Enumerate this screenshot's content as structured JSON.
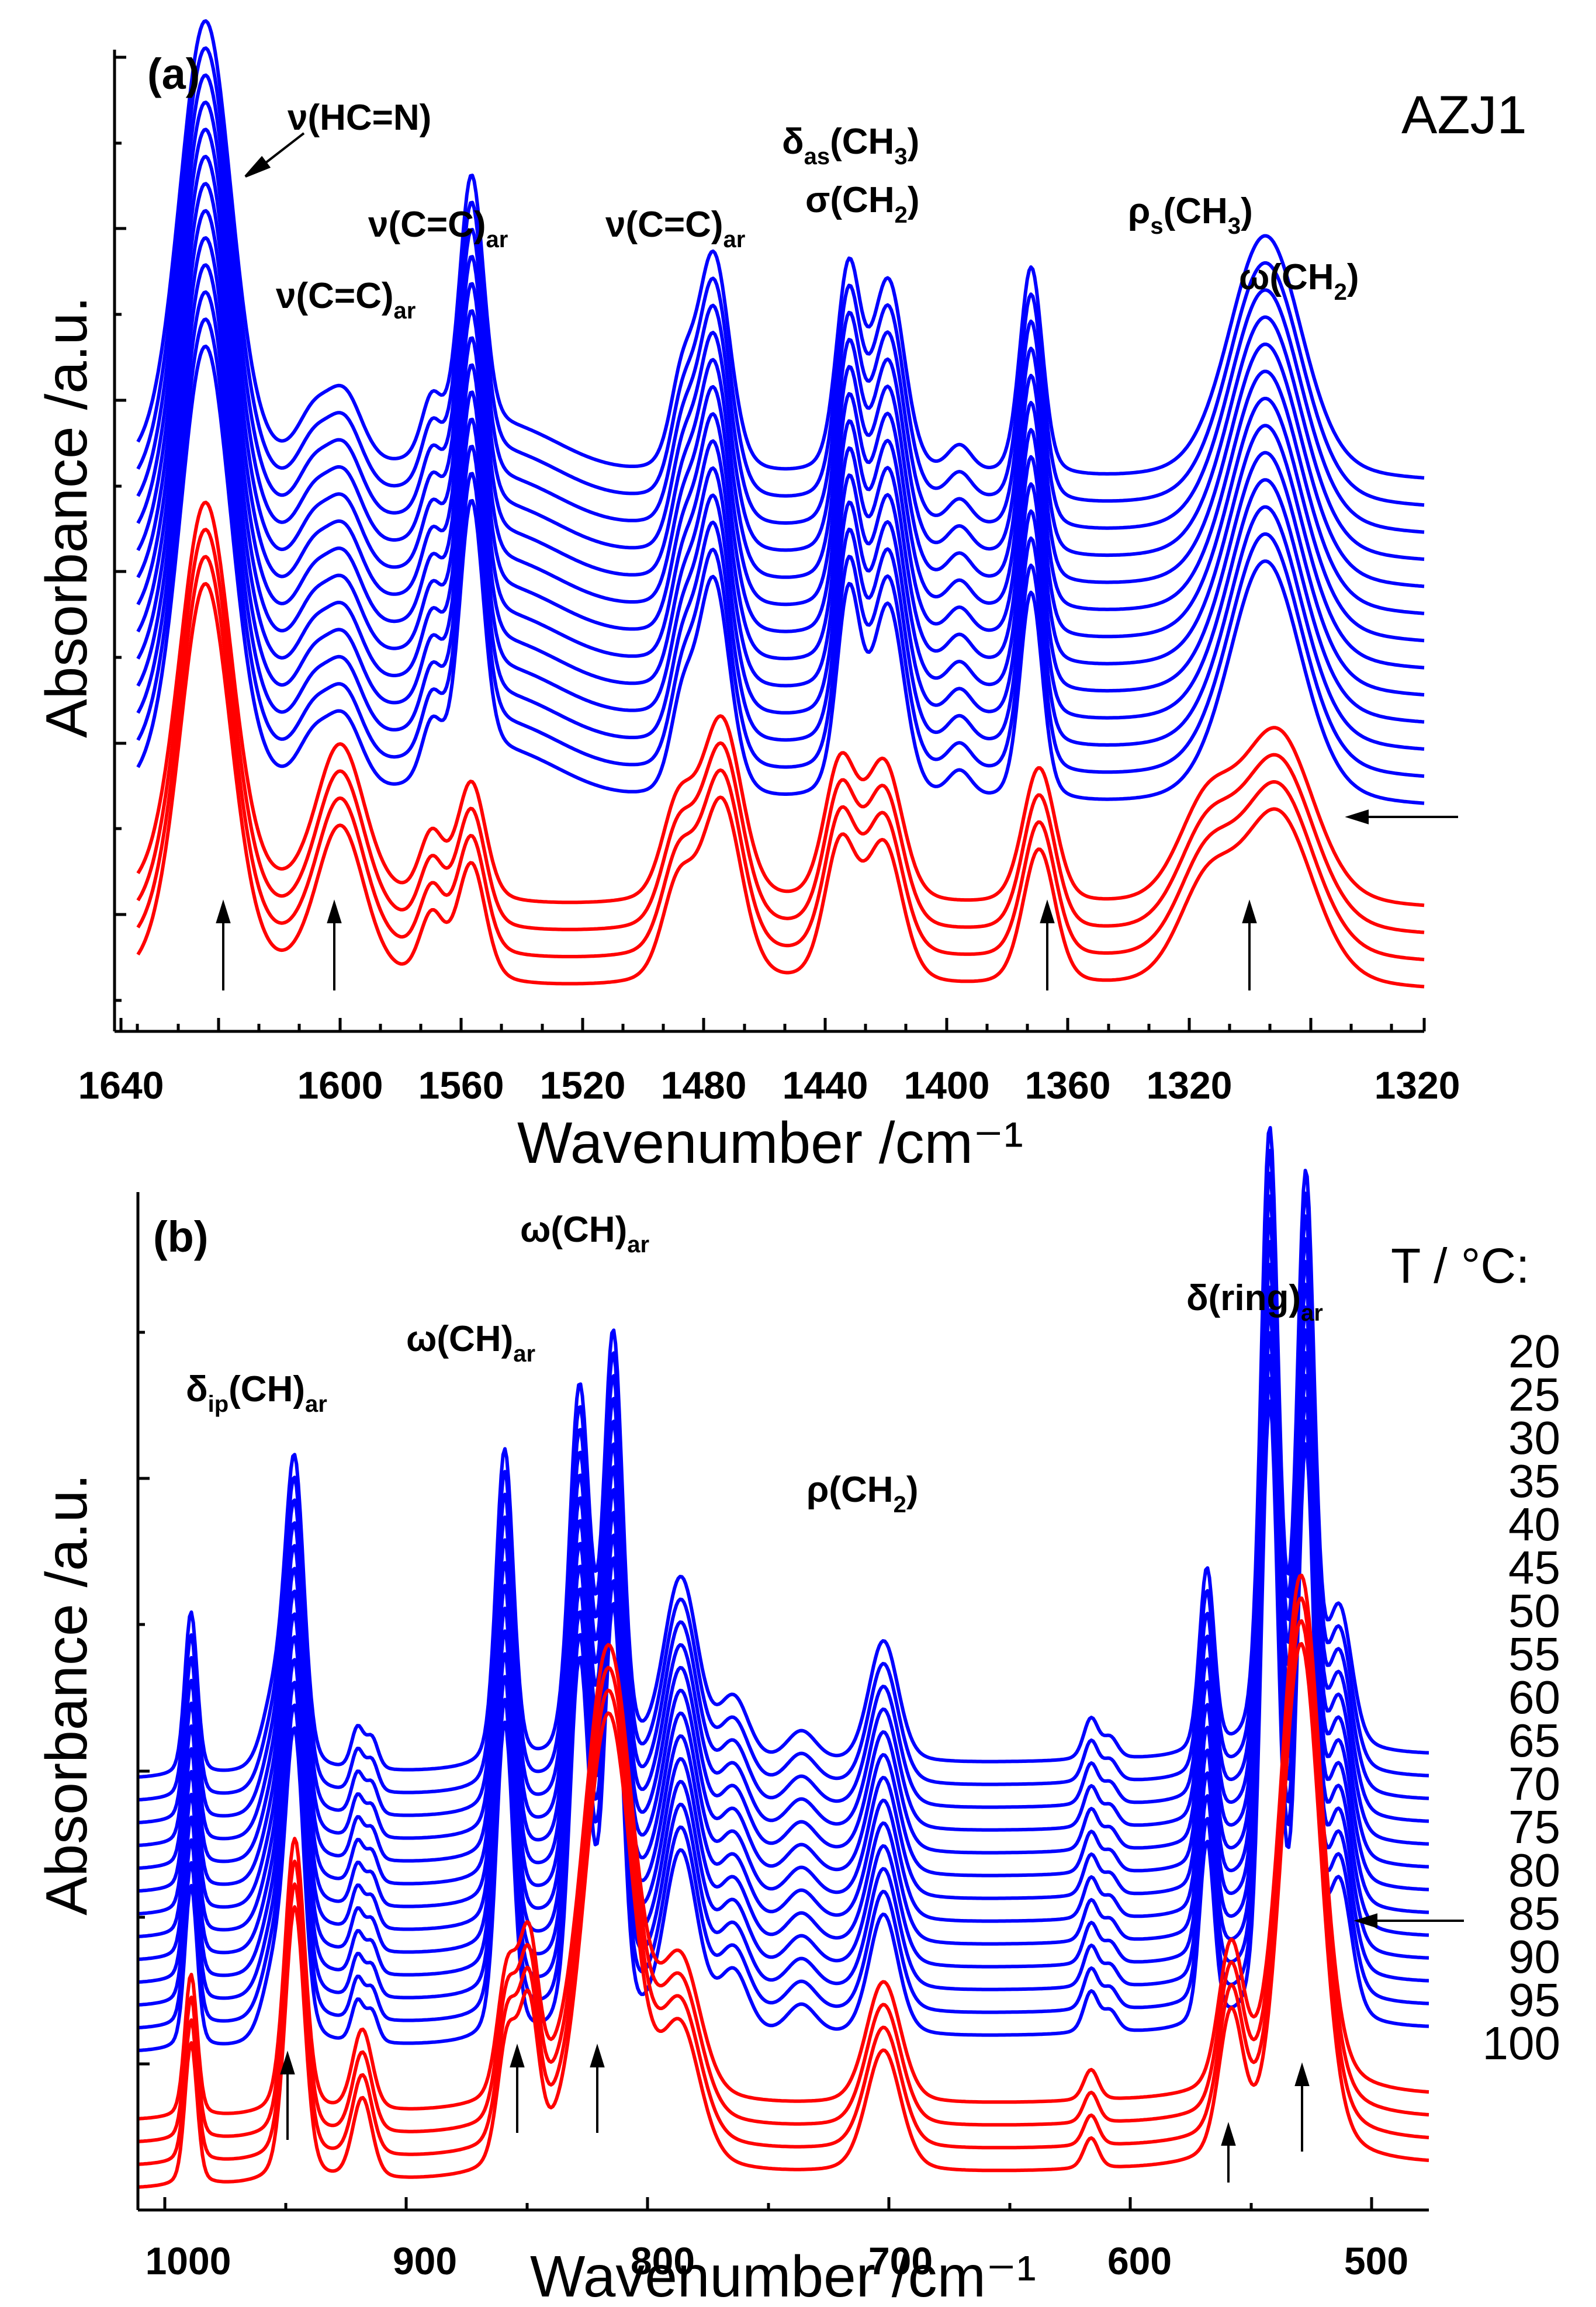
{
  "figure": {
    "sample_label": "AZJ1",
    "temperature_title": "T / °C:",
    "temperatures": [
      "20",
      "25",
      "30",
      "35",
      "40",
      "45",
      "50",
      "55",
      "60",
      "65",
      "70",
      "75",
      "80",
      "85",
      "90",
      "95",
      "100"
    ],
    "transition_marker_temperature": "85",
    "colors": {
      "solid": "#0000ff",
      "melt": "#ff0000",
      "axis": "#000000"
    }
  },
  "chart_data": [
    {
      "panel": "(a)",
      "type": "line",
      "xlabel": "Wavenumber /cm⁻¹",
      "ylabel": "Absorbance /a.u.",
      "xlim": [
        1644,
        1320
      ],
      "xticks": [
        "1640",
        "1600",
        "1560",
        "1520",
        "1480",
        "1440",
        "1400",
        "1360",
        "1320"
      ],
      "ylim": [
        0,
        1
      ],
      "series": [
        {
          "name": "20 °C",
          "phase": "solid",
          "offset": 0.76
        },
        {
          "name": "25 °C",
          "phase": "solid",
          "offset": 0.72
        },
        {
          "name": "30 °C",
          "phase": "solid",
          "offset": 0.68
        },
        {
          "name": "35 °C",
          "phase": "solid",
          "offset": 0.64
        },
        {
          "name": "40 °C",
          "phase": "solid",
          "offset": 0.6
        },
        {
          "name": "45 °C",
          "phase": "solid",
          "offset": 0.56
        },
        {
          "name": "50 °C",
          "phase": "solid",
          "offset": 0.52
        },
        {
          "name": "55 °C",
          "phase": "solid",
          "offset": 0.48
        },
        {
          "name": "60 °C",
          "phase": "solid",
          "offset": 0.44
        },
        {
          "name": "65 °C",
          "phase": "solid",
          "offset": 0.4
        },
        {
          "name": "70 °C",
          "phase": "solid",
          "offset": 0.36
        },
        {
          "name": "75 °C",
          "phase": "solid",
          "offset": 0.32
        },
        {
          "name": "80 °C",
          "phase": "solid",
          "offset": 0.28
        },
        {
          "name": "85 °C",
          "phase": "melt",
          "offset": 0.13
        },
        {
          "name": "90 °C",
          "phase": "melt",
          "offset": 0.09
        },
        {
          "name": "95 °C",
          "phase": "melt",
          "offset": 0.05
        },
        {
          "name": "100 °C",
          "phase": "melt",
          "offset": 0.01
        }
      ],
      "solid_peaks": [
        {
          "center": 1627,
          "width": 6.5,
          "height": 0.5
        },
        {
          "center": 1600,
          "width": 4,
          "height": 0.05
        },
        {
          "center": 1592,
          "width": 4.5,
          "height": 0.08
        },
        {
          "center": 1570,
          "width": 2.5,
          "height": 0.06
        },
        {
          "center": 1560,
          "width": 3,
          "height": 0.29
        },
        {
          "center": 1550,
          "width": 14,
          "height": 0.05
        },
        {
          "center": 1507,
          "width": 3,
          "height": 0.09
        },
        {
          "center": 1499,
          "width": 4,
          "height": 0.24
        },
        {
          "center": 1465,
          "width": 3,
          "height": 0.22
        },
        {
          "center": 1455,
          "width": 4,
          "height": 0.21
        },
        {
          "center": 1437,
          "width": 3,
          "height": 0.03
        },
        {
          "center": 1419,
          "width": 2.8,
          "height": 0.23
        },
        {
          "center": 1360,
          "width": 9,
          "height": 0.27
        }
      ],
      "melt_peaks": [
        {
          "center": 1627,
          "width": 6.5,
          "height": 0.44
        },
        {
          "center": 1593,
          "width": 6,
          "height": 0.17
        },
        {
          "center": 1570,
          "width": 3,
          "height": 0.07
        },
        {
          "center": 1560,
          "width": 3.5,
          "height": 0.13
        },
        {
          "center": 1508,
          "width": 4,
          "height": 0.1
        },
        {
          "center": 1497,
          "width": 5,
          "height": 0.2
        },
        {
          "center": 1467,
          "width": 4,
          "height": 0.15
        },
        {
          "center": 1456,
          "width": 4.5,
          "height": 0.15
        },
        {
          "center": 1417,
          "width": 4,
          "height": 0.15
        },
        {
          "center": 1375,
          "width": 7,
          "height": 0.1
        },
        {
          "center": 1357,
          "width": 9,
          "height": 0.19
        }
      ],
      "annotations": [
        {
          "text": "ν(HC=N)"
        },
        {
          "text": "ν(C=C)",
          "sub": "ar"
        },
        {
          "text": "ν(C=C)",
          "sub": "ar"
        },
        {
          "text": "ν(C=C)",
          "sub": "ar"
        },
        {
          "text": "δ",
          "sub": "as",
          "after": "(CH",
          "sub2": "3",
          "end": ")"
        },
        {
          "text": "σ(CH",
          "sub": "2",
          "end": ")"
        },
        {
          "text": "ρ",
          "sub": "s",
          "after": "(CH",
          "sub2": "3",
          "end": ")"
        },
        {
          "text": "ω(CH",
          "sub": "2",
          "end": ")"
        }
      ],
      "arrows_at": [
        1627,
        1593,
        1417,
        1363
      ]
    },
    {
      "panel": "(b)",
      "type": "line",
      "xlabel": "Wavenumber /cm⁻¹",
      "ylabel": "Absorbance /a.u.",
      "xlim": [
        1035,
        500
      ],
      "xticks": [
        "1000",
        "900",
        "800",
        "700",
        "600",
        "500"
      ],
      "ylim": [
        0,
        1
      ],
      "series": [
        {
          "name": "20 °C",
          "phase": "solid",
          "offset": 0.54
        },
        {
          "name": "25 °C",
          "phase": "solid",
          "offset": 0.51
        },
        {
          "name": "30 °C",
          "phase": "solid",
          "offset": 0.48
        },
        {
          "name": "35 °C",
          "phase": "solid",
          "offset": 0.45
        },
        {
          "name": "40 °C",
          "phase": "solid",
          "offset": 0.42
        },
        {
          "name": "45 °C",
          "phase": "solid",
          "offset": 0.39
        },
        {
          "name": "50 °C",
          "phase": "solid",
          "offset": 0.36
        },
        {
          "name": "55 °C",
          "phase": "solid",
          "offset": 0.33
        },
        {
          "name": "60 °C",
          "phase": "solid",
          "offset": 0.3
        },
        {
          "name": "65 °C",
          "phase": "solid",
          "offset": 0.27
        },
        {
          "name": "70 °C",
          "phase": "solid",
          "offset": 0.24
        },
        {
          "name": "75 °C",
          "phase": "solid",
          "offset": 0.21
        },
        {
          "name": "80 °C",
          "phase": "solid",
          "offset": 0.18
        },
        {
          "name": "85 °C",
          "phase": "melt",
          "offset": 0.09
        },
        {
          "name": "90 °C",
          "phase": "melt",
          "offset": 0.06
        },
        {
          "name": "95 °C",
          "phase": "melt",
          "offset": 0.03
        },
        {
          "name": "100 °C",
          "phase": "melt",
          "offset": 0.0
        }
      ],
      "solid_peaks": [
        {
          "center": 1013,
          "width": 2.5,
          "height": 0.16
        },
        {
          "center": 978,
          "width": 5,
          "height": 0.07
        },
        {
          "center": 970,
          "width": 3.8,
          "height": 0.29
        },
        {
          "center": 944,
          "width": 2.5,
          "height": 0.04
        },
        {
          "center": 938,
          "width": 2.5,
          "height": 0.03
        },
        {
          "center": 883,
          "width": 3.5,
          "height": 0.31
        },
        {
          "center": 852,
          "width": 4,
          "height": 0.36
        },
        {
          "center": 838,
          "width": 3.8,
          "height": 0.41
        },
        {
          "center": 810,
          "width": 7,
          "height": 0.18
        },
        {
          "center": 788,
          "width": 6,
          "height": 0.06
        },
        {
          "center": 760,
          "width": 6,
          "height": 0.03
        },
        {
          "center": 726,
          "width": 6,
          "height": 0.12
        },
        {
          "center": 640,
          "width": 3,
          "height": 0.04
        },
        {
          "center": 632,
          "width": 3,
          "height": 0.02
        },
        {
          "center": 592,
          "width": 3,
          "height": 0.18
        },
        {
          "center": 566,
          "width": 3.5,
          "height": 0.6
        },
        {
          "center": 551,
          "width": 3.5,
          "height": 0.55
        },
        {
          "center": 537,
          "width": 5,
          "height": 0.13
        }
      ],
      "melt_peaks": [
        {
          "center": 1013,
          "width": 2.5,
          "height": 0.14
        },
        {
          "center": 970,
          "width": 4,
          "height": 0.27
        },
        {
          "center": 942,
          "width": 4,
          "height": 0.08
        },
        {
          "center": 882,
          "width": 4,
          "height": 0.12
        },
        {
          "center": 873,
          "width": 4,
          "height": 0.15
        },
        {
          "center": 840,
          "width": 10,
          "height": 0.45
        },
        {
          "center": 810,
          "width": 8,
          "height": 0.13
        },
        {
          "center": 726,
          "width": 7,
          "height": 0.12
        },
        {
          "center": 640,
          "width": 3,
          "height": 0.03
        },
        {
          "center": 582,
          "width": 5,
          "height": 0.14
        },
        {
          "center": 553,
          "width": 8,
          "height": 0.51
        }
      ],
      "annotations": [
        {
          "text": "δ",
          "sub": "ip",
          "after": "(CH)",
          "sub2": "ar"
        },
        {
          "text": "ω(CH)",
          "sub": "ar"
        },
        {
          "text": "ω(CH)",
          "sub": "ar"
        },
        {
          "text": "ρ(CH",
          "sub": "2",
          "end": ")"
        },
        {
          "text": "δ(ring)",
          "sub": "ar"
        }
      ],
      "arrows_at": [
        970,
        874,
        840,
        580,
        551
      ]
    }
  ]
}
